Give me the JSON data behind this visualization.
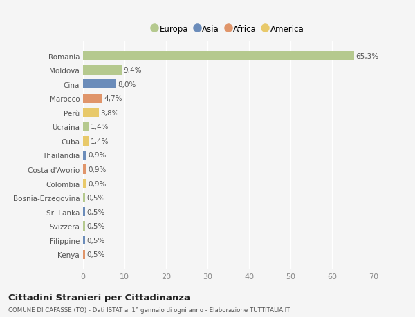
{
  "countries": [
    "Romania",
    "Moldova",
    "Cina",
    "Marocco",
    "Perù",
    "Ucraina",
    "Cuba",
    "Thailandia",
    "Costa d'Avorio",
    "Colombia",
    "Bosnia-Erzegovina",
    "Sri Lanka",
    "Svizzera",
    "Filippine",
    "Kenya"
  ],
  "values": [
    65.3,
    9.4,
    8.0,
    4.7,
    3.8,
    1.4,
    1.4,
    0.9,
    0.9,
    0.9,
    0.5,
    0.5,
    0.5,
    0.5,
    0.5
  ],
  "labels": [
    "65,3%",
    "9,4%",
    "8,0%",
    "4,7%",
    "3,8%",
    "1,4%",
    "1,4%",
    "0,9%",
    "0,9%",
    "0,9%",
    "0,5%",
    "0,5%",
    "0,5%",
    "0,5%",
    "0,5%"
  ],
  "continents": [
    "Europa",
    "Europa",
    "Asia",
    "Africa",
    "America",
    "Europa",
    "America",
    "Asia",
    "Africa",
    "America",
    "Europa",
    "Asia",
    "Europa",
    "Asia",
    "Africa"
  ],
  "continent_colors": {
    "Europa": "#b5c98e",
    "Asia": "#6b8cba",
    "Africa": "#e0956a",
    "America": "#e8c96a"
  },
  "legend_order": [
    "Europa",
    "Asia",
    "Africa",
    "America"
  ],
  "title": "Cittadini Stranieri per Cittadinanza",
  "subtitle": "COMUNE DI CAFASSE (TO) - Dati ISTAT al 1° gennaio di ogni anno - Elaborazione TUTTITALIA.IT",
  "xlim": [
    0,
    70
  ],
  "xticks": [
    0,
    10,
    20,
    30,
    40,
    50,
    60,
    70
  ],
  "background_color": "#f5f5f5",
  "grid_color": "#ffffff",
  "bar_height": 0.65
}
